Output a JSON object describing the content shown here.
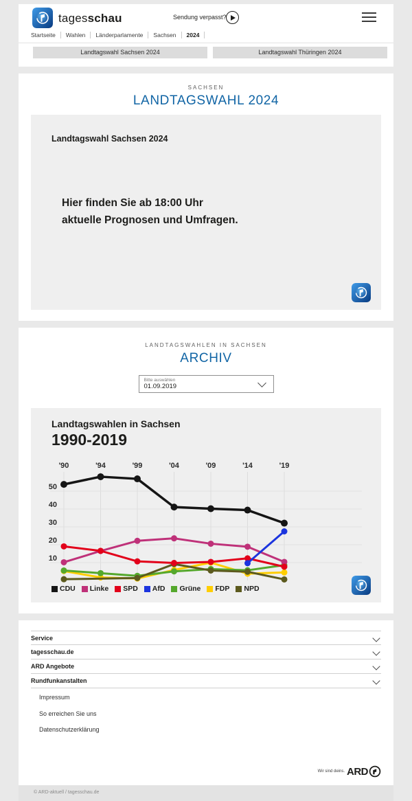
{
  "colors": {
    "accent_blue": "#1165a5",
    "page_bg": "#e9e9e9",
    "box_bg": "#efefef",
    "tab_bg": "#dcdcdc"
  },
  "header": {
    "brand_regular": "tages",
    "brand_bold": "schau",
    "missed_show_label": "Sendung verpasst?",
    "breadcrumb": [
      "Startseite",
      "Wahlen",
      "Länderparlamente",
      "Sachsen",
      "2024"
    ],
    "tabs": [
      "Landtagswahl Sachsen 2024",
      "Landtagswahl Thüringen 2024"
    ]
  },
  "hero": {
    "kicker": "SACHSEN",
    "title": "LANDTAGSWAHL 2024",
    "media_heading": "Landtagswahl Sachsen 2024",
    "promo_line1": "Hier finden Sie ab 18:00 Uhr",
    "promo_line2": "aktuelle Prognosen und Umfragen."
  },
  "archive": {
    "kicker": "LANDTAGSWAHLEN IN SACHSEN",
    "title": "ARCHIV",
    "select_label": "Bitte auswählen",
    "select_value": "01.09.2019"
  },
  "chart_data": {
    "type": "line",
    "title": "Landtagswahlen in Sachsen",
    "subtitle": "1990-2019",
    "x": [
      "'90",
      "'94",
      "'99",
      "'04",
      "'09",
      "'14",
      "'19"
    ],
    "ylim": [
      0,
      62
    ],
    "yticks": [
      10,
      20,
      30,
      40,
      50
    ],
    "grid": true,
    "legend_position": "bottom",
    "unit": "percent",
    "series": [
      {
        "name": "CDU",
        "color": "#151515",
        "values": [
          53.8,
          58.1,
          56.9,
          41.1,
          40.2,
          39.4,
          32.1
        ]
      },
      {
        "name": "Linke",
        "color": "#bf3179",
        "values": [
          10.2,
          16.5,
          22.2,
          23.6,
          20.6,
          18.9,
          10.4
        ]
      },
      {
        "name": "SPD",
        "color": "#e2001a",
        "values": [
          19.1,
          16.6,
          10.7,
          9.8,
          10.4,
          12.4,
          7.7
        ]
      },
      {
        "name": "AfD",
        "color": "#1b34de",
        "values": [
          null,
          null,
          null,
          null,
          null,
          9.7,
          27.5
        ]
      },
      {
        "name": "Grüne",
        "color": "#55a82c",
        "values": [
          5.6,
          4.1,
          2.6,
          5.1,
          6.4,
          5.7,
          8.6
        ]
      },
      {
        "name": "FDP",
        "color": "#ffce00",
        "values": [
          5.3,
          1.7,
          1.1,
          5.9,
          10.0,
          3.8,
          4.5
        ]
      },
      {
        "name": "NPD",
        "color": "#5c5a1e",
        "values": [
          0.7,
          null,
          1.4,
          9.2,
          5.6,
          4.9,
          0.6
        ]
      }
    ]
  },
  "footer": {
    "accordions": [
      "Service",
      "tagesschau.de",
      "ARD Angebote",
      "Rundfunkanstalten"
    ],
    "links": [
      "Impressum",
      "So erreichen Sie uns",
      "Datenschutzerklärung"
    ],
    "brand_claim": "Wir sind deins.",
    "brand_name": "ARD",
    "copyright": "© ARD-aktuell / tagesschau.de"
  }
}
